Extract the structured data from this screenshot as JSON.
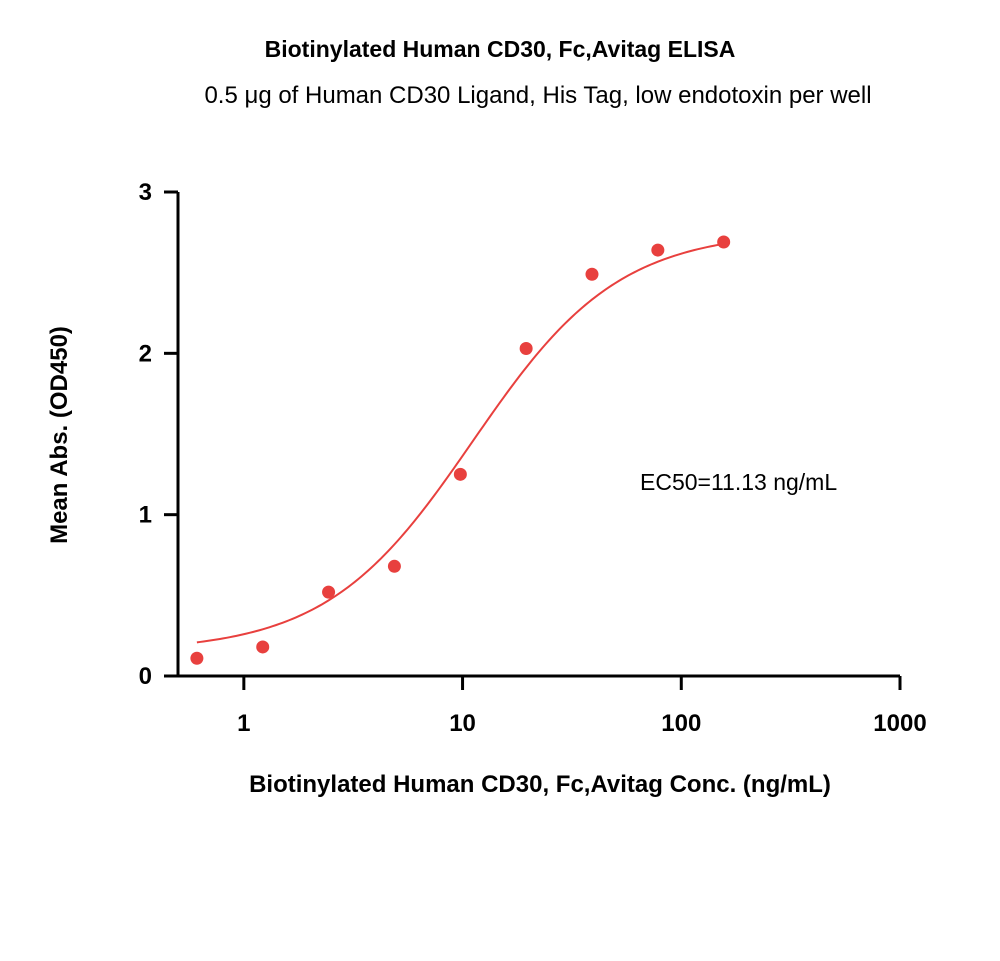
{
  "chart_data": {
    "type": "scatter",
    "title": "Biotinylated Human CD30, Fc,Avitag ELISA",
    "subtitle": "0.5 μg of Human CD30 Ligand, His Tag, low endotoxin per well",
    "xlabel": "Biotinylated Human CD30, Fc,Avitag Conc. (ng/mL)",
    "ylabel": "Mean Abs. (OD450)",
    "x_scale": "log",
    "xlim": [
      0.5,
      1000
    ],
    "ylim": [
      0,
      3
    ],
    "x_ticks": [
      {
        "value": 1,
        "label": "1"
      },
      {
        "value": 10,
        "label": "10"
      },
      {
        "value": 100,
        "label": "100"
      },
      {
        "value": 1000,
        "label": "1000"
      }
    ],
    "y_ticks": [
      {
        "value": 0,
        "label": "0"
      },
      {
        "value": 1,
        "label": "1"
      },
      {
        "value": 2,
        "label": "2"
      },
      {
        "value": 3,
        "label": "3"
      }
    ],
    "series": [
      {
        "color": "#e8403e",
        "x": [
          0.61,
          1.22,
          2.44,
          4.88,
          9.77,
          19.53,
          39.06,
          78.13,
          156.25
        ],
        "y": [
          0.11,
          0.18,
          0.52,
          0.68,
          1.25,
          2.03,
          2.49,
          2.64,
          2.69
        ]
      }
    ],
    "fit": {
      "model": "4PL",
      "bottom": 0.15,
      "top": 2.76,
      "ec50": 11.13,
      "hill": 1.3,
      "x_range": [
        0.61,
        156.25
      ],
      "color": "#e8403e"
    },
    "annotation": "EC50=11.13 ng/mL",
    "grid": false
  }
}
